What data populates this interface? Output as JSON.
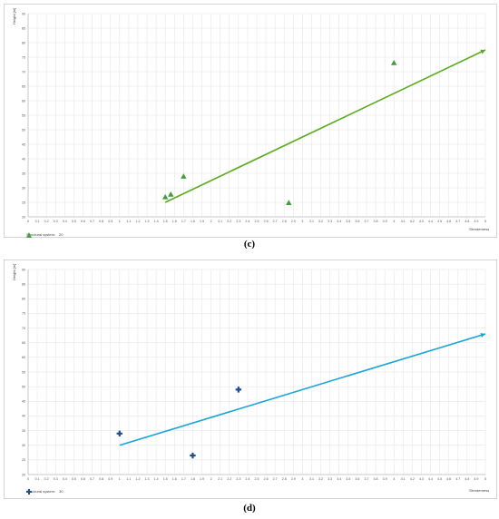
{
  "chart_data": [
    {
      "id": "c",
      "type": "scatter",
      "ylabel": "Height [m]",
      "xlabel": "Slenderness",
      "xlim": [
        0,
        5
      ],
      "ylim": [
        20,
        90
      ],
      "x_ticks": [
        0,
        0.1,
        0.2,
        0.3,
        0.4,
        0.5,
        0.6,
        0.7,
        0.8,
        0.9,
        1,
        1.1,
        1.2,
        1.3,
        1.4,
        1.5,
        1.6,
        1.7,
        1.8,
        1.9,
        2,
        2.1,
        2.2,
        2.3,
        2.4,
        2.5,
        2.6,
        2.7,
        2.8,
        2.9,
        3,
        3.1,
        3.2,
        3.3,
        3.4,
        3.5,
        3.6,
        3.7,
        3.8,
        3.9,
        4,
        4.1,
        4.2,
        4.3,
        4.4,
        4.5,
        4.6,
        4.7,
        4.8,
        4.9,
        5
      ],
      "y_ticks": [
        20,
        25,
        30,
        35,
        40,
        45,
        50,
        55,
        60,
        65,
        70,
        75,
        80,
        85,
        90
      ],
      "grid": true,
      "legend": {
        "title": "Structural system:",
        "position": "bottom-left"
      },
      "series": [
        {
          "name": "20",
          "marker": "triangle",
          "color": "#3f9c3f",
          "points": [
            [
              1.5,
              26.8
            ],
            [
              1.56,
              27.7
            ],
            [
              1.7,
              33.9
            ],
            [
              2.85,
              24.8
            ],
            [
              4.0,
              73.0
            ]
          ]
        }
      ],
      "trendline": {
        "color": "#5aaa1e",
        "x": [
          1.5,
          5.0
        ],
        "y": [
          25.0,
          77.5
        ]
      }
    },
    {
      "id": "d",
      "type": "scatter",
      "ylabel": "Height [m]",
      "xlabel": "Slenderness",
      "xlim": [
        0,
        5
      ],
      "ylim": [
        20,
        90
      ],
      "x_ticks": [
        0,
        0.1,
        0.2,
        0.3,
        0.4,
        0.5,
        0.6,
        0.7,
        0.8,
        0.9,
        1,
        1.1,
        1.2,
        1.3,
        1.4,
        1.5,
        1.6,
        1.7,
        1.8,
        1.9,
        2,
        2.1,
        2.2,
        2.3,
        2.4,
        2.5,
        2.6,
        2.7,
        2.8,
        2.9,
        3,
        3.1,
        3.2,
        3.3,
        3.4,
        3.5,
        3.6,
        3.7,
        3.8,
        3.9,
        4,
        4.1,
        4.2,
        4.3,
        4.4,
        4.5,
        4.6,
        4.7,
        4.8,
        4.9,
        5
      ],
      "y_ticks": [
        20,
        25,
        30,
        35,
        40,
        45,
        50,
        55,
        60,
        65,
        70,
        75,
        80,
        85,
        90
      ],
      "grid": true,
      "legend": {
        "title": "Structural system:",
        "position": "bottom-left"
      },
      "series": [
        {
          "name": "30",
          "marker": "cross",
          "color": "#1f4e8c",
          "points": [
            [
              1.0,
              34.0
            ],
            [
              1.8,
              26.5
            ],
            [
              2.3,
              49.0
            ]
          ]
        }
      ],
      "trendline": {
        "color": "#1aa5d8",
        "x": [
          1.0,
          5.0
        ],
        "y": [
          30.0,
          68.0
        ]
      }
    }
  ],
  "captions": {
    "c": "(c)",
    "d": "(d)"
  }
}
